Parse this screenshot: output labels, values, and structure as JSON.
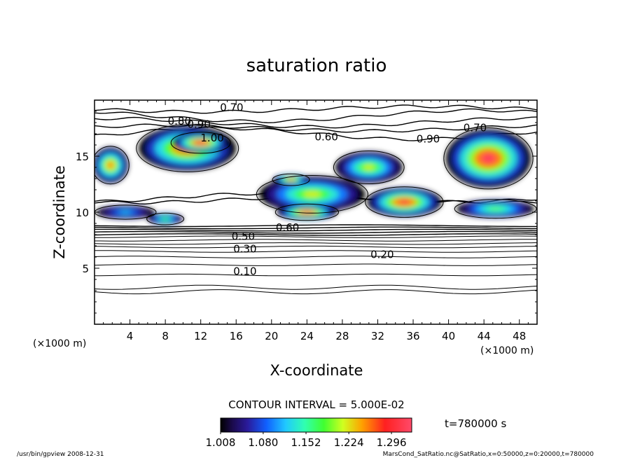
{
  "chart_data": {
    "type": "heatmap",
    "title": "saturation ratio",
    "xlabel": "X-coordinate",
    "ylabel": "Z-coordinate",
    "x_unit": "(×1000 m)",
    "y_unit": "(×1000 m)",
    "xlim": [
      0,
      50
    ],
    "ylim": [
      0,
      20
    ],
    "x_ticks": [
      "4",
      "8",
      "12",
      "16",
      "20",
      "24",
      "28",
      "32",
      "36",
      "40",
      "44",
      "48"
    ],
    "y_ticks": [
      "5",
      "10",
      "15"
    ],
    "contour_interval_text": "CONTOUR INTERVAL = 5.000E-02",
    "contour_labels": [
      {
        "text": "0.70",
        "x": 15.5,
        "y": 19.3
      },
      {
        "text": "0.80",
        "x": 9.6,
        "y": 18.1
      },
      {
        "text": "0.90",
        "x": 11.8,
        "y": 17.8
      },
      {
        "text": "1.00",
        "x": 13.3,
        "y": 16.6
      },
      {
        "text": "0.60",
        "x": 26.2,
        "y": 16.7
      },
      {
        "text": "0.70",
        "x": 43.0,
        "y": 17.5
      },
      {
        "text": "0.90",
        "x": 37.7,
        "y": 16.5
      },
      {
        "text": "0.60",
        "x": 21.8,
        "y": 8.6
      },
      {
        "text": "0.50",
        "x": 16.8,
        "y": 7.8
      },
      {
        "text": "0.30",
        "x": 17.0,
        "y": 6.7
      },
      {
        "text": "0.20",
        "x": 32.5,
        "y": 6.2
      },
      {
        "text": "0.10",
        "x": 17.0,
        "y": 4.7
      }
    ],
    "colorbar": {
      "ticks": [
        "1.008",
        "1.080",
        "1.152",
        "1.224",
        "1.296"
      ],
      "range": [
        1.008,
        1.33
      ]
    },
    "supersaturation_regions": [
      {
        "x": 10.5,
        "y": 15.7,
        "rx": 5.5,
        "ry": 2.0,
        "peak": 1.3
      },
      {
        "x": 12.0,
        "y": 16.2,
        "rx": 3.2,
        "ry": 0.9,
        "peak": 1.32
      },
      {
        "x": 1.8,
        "y": 14.2,
        "rx": 2.0,
        "ry": 1.6,
        "peak": 1.27
      },
      {
        "x": 24.6,
        "y": 11.6,
        "rx": 6.0,
        "ry": 1.6,
        "peak": 1.22
      },
      {
        "x": 24.0,
        "y": 10.0,
        "rx": 3.4,
        "ry": 0.7,
        "peak": 1.31
      },
      {
        "x": 22.2,
        "y": 12.9,
        "rx": 2.0,
        "ry": 0.5,
        "peak": 1.27
      },
      {
        "x": 31.0,
        "y": 14.0,
        "rx": 3.8,
        "ry": 1.4,
        "peak": 1.22
      },
      {
        "x": 35.0,
        "y": 10.9,
        "rx": 4.2,
        "ry": 1.3,
        "peak": 1.31
      },
      {
        "x": 44.5,
        "y": 14.8,
        "rx": 4.8,
        "ry": 2.6,
        "peak": 1.32
      },
      {
        "x": 45.3,
        "y": 10.3,
        "rx": 4.4,
        "ry": 0.8,
        "peak": 1.19
      },
      {
        "x": 8.0,
        "y": 9.4,
        "rx": 2.0,
        "ry": 0.5,
        "peak": 1.18
      },
      {
        "x": 3.5,
        "y": 10.0,
        "rx": 3.3,
        "ry": 0.6,
        "peak": 1.12
      }
    ],
    "background_levels": [
      {
        "y": 2.9,
        "v": 0.05
      },
      {
        "y": 3.3,
        "v": 0.05
      },
      {
        "y": 4.4,
        "v": 0.1
      },
      {
        "y": 5.3,
        "v": 0.15
      },
      {
        "y": 6.0,
        "v": 0.2
      },
      {
        "y": 6.5,
        "v": 0.25
      },
      {
        "y": 6.9,
        "v": 0.3
      },
      {
        "y": 7.2,
        "v": 0.35
      },
      {
        "y": 7.5,
        "v": 0.4
      },
      {
        "y": 7.8,
        "v": 0.45
      },
      {
        "y": 8.0,
        "v": 0.5
      },
      {
        "y": 8.2,
        "v": 0.55
      },
      {
        "y": 8.4,
        "v": 0.6
      },
      {
        "y": 8.6,
        "v": 0.65
      },
      {
        "y": 8.8,
        "v": 0.7
      },
      {
        "y": 11.1,
        "v": 0.7
      },
      {
        "y": 11.3,
        "v": 0.65
      },
      {
        "y": 17.0,
        "v": 0.8
      },
      {
        "y": 17.5,
        "v": 0.7
      },
      {
        "y": 18.0,
        "v": 0.65
      },
      {
        "y": 18.6,
        "v": 0.6
      },
      {
        "y": 19.2,
        "v": 0.7
      }
    ]
  },
  "time_label": "t=780000 s",
  "footer": {
    "left": "/usr/bin/gpview   2008-12-31",
    "right": "MarsCond_SatRatio.nc@SatRatio,x=0:50000,z=0:20000,t=780000"
  },
  "colors": {
    "frame": "#000000",
    "background": "#ffffff"
  }
}
